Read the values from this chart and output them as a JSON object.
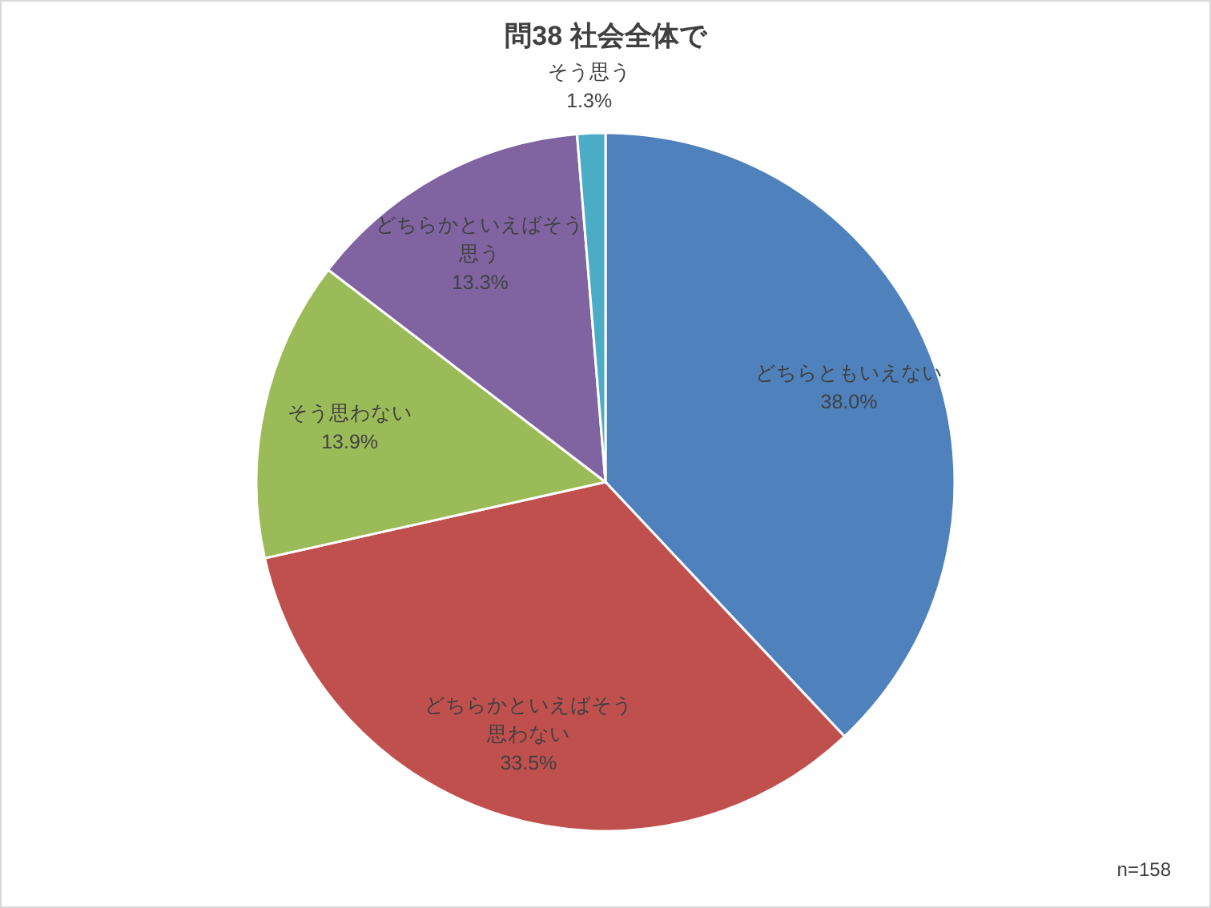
{
  "chart_data": {
    "type": "pie",
    "title": "問38  社会全体で",
    "categories": [
      "どちらともいえない",
      "どちらかといえばそう思わない",
      "そう思わない",
      "どちらかといえばそう思う",
      "そう思う"
    ],
    "values": [
      38.0,
      33.5,
      13.9,
      13.3,
      1.3
    ],
    "value_labels": [
      "38.0%",
      "33.5%",
      "13.9%",
      "13.3%",
      "1.3%"
    ],
    "colors": [
      "#4f81bd",
      "#c0504d",
      "#9bbb59",
      "#8064a2",
      "#4bacc6"
    ],
    "annotations": [
      "n=158"
    ]
  }
}
